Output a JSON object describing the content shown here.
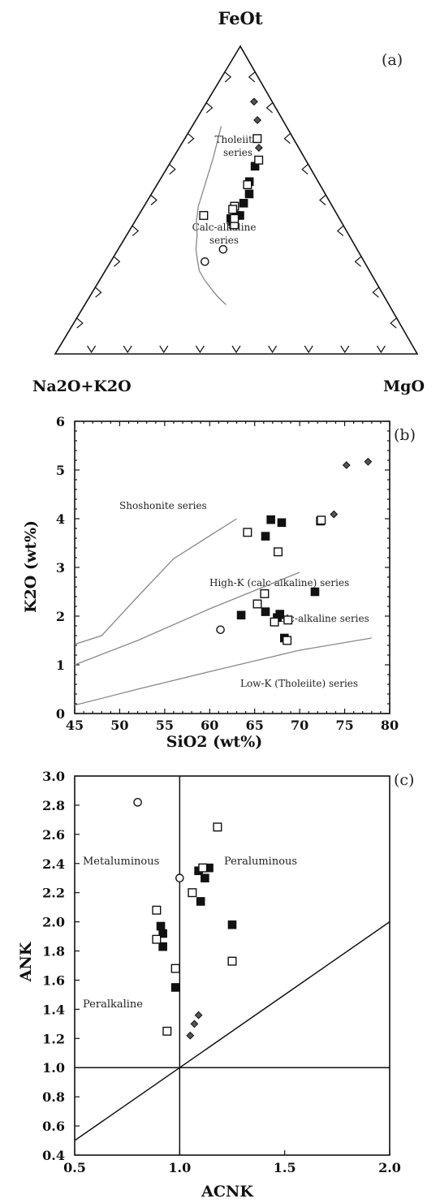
{
  "chart_data": [
    {
      "panel": "(a)",
      "type": "scatter",
      "subtype": "ternary AFM diagram",
      "apex_labels": {
        "top": "FeOt",
        "left": "Na2O+K2O",
        "right": "MgO"
      },
      "field_labels": [
        {
          "line1": "Tholeiitic",
          "line2": "series"
        },
        {
          "line1": "Calc-alkaline",
          "line2": "series"
        }
      ],
      "boundary_curve": [
        [
          0.74,
          0.18,
          0.08
        ],
        [
          0.64,
          0.25,
          0.11
        ],
        [
          0.56,
          0.31,
          0.13
        ],
        [
          0.48,
          0.37,
          0.15
        ],
        [
          0.43,
          0.4,
          0.17
        ],
        [
          0.385,
          0.42,
          0.195
        ],
        [
          0.34,
          0.445,
          0.215
        ],
        [
          0.3,
          0.46,
          0.24
        ],
        [
          0.27,
          0.47,
          0.26
        ],
        [
          0.24,
          0.47,
          0.29
        ],
        [
          0.21,
          0.465,
          0.325
        ],
        [
          0.185,
          0.46,
          0.355
        ],
        [
          0.16,
          0.45,
          0.39
        ]
      ],
      "series": [
        {
          "symbol": "filled-square",
          "points": [
            [
              0.61,
              0.15,
              0.24
            ],
            [
              0.56,
              0.19,
              0.25
            ],
            [
              0.52,
              0.21,
              0.27
            ],
            [
              0.49,
              0.24,
              0.27
            ],
            [
              0.45,
              0.28,
              0.27
            ],
            [
              0.43,
              0.3,
              0.27
            ],
            [
              0.45,
              0.27,
              0.28
            ],
            [
              0.44,
              0.3,
              0.26
            ],
            [
              0.42,
              0.3,
              0.28
            ]
          ]
        },
        {
          "symbol": "open-square",
          "points": [
            [
              0.7,
              0.1,
              0.2
            ],
            [
              0.63,
              0.13,
              0.24
            ],
            [
              0.55,
              0.2,
              0.25
            ],
            [
              0.48,
              0.27,
              0.25
            ],
            [
              0.47,
              0.28,
              0.25
            ],
            [
              0.45,
              0.37,
              0.18
            ],
            [
              0.42,
              0.3,
              0.28
            ],
            [
              0.44,
              0.29,
              0.27
            ]
          ]
        },
        {
          "symbol": "open-circle",
          "points": [
            [
              0.34,
              0.37,
              0.29
            ],
            [
              0.3,
              0.44,
              0.26
            ]
          ]
        },
        {
          "symbol": "diamond",
          "points": [
            [
              0.82,
              0.05,
              0.13
            ],
            [
              0.76,
              0.07,
              0.17
            ],
            [
              0.67,
              0.11,
              0.22
            ]
          ]
        }
      ]
    },
    {
      "panel": "(b)",
      "type": "scatter",
      "xlabel": "SiO2 (wt%)",
      "ylabel": "K2O (wt%)",
      "xlim": [
        45,
        80
      ],
      "ylim": [
        0,
        6
      ],
      "xticks": [
        45,
        50,
        55,
        60,
        65,
        70,
        75,
        80
      ],
      "yticks": [
        0,
        1,
        2,
        3,
        4,
        5,
        6
      ],
      "field_labels": [
        "Shoshonite series",
        "High-K (calc-alkaline) series",
        "Calc-alkaline series",
        "Low-K (Tholeiite) series"
      ],
      "boundaries": [
        [
          [
            45,
            1.42
          ],
          [
            48,
            1.6
          ],
          [
            52,
            2.4
          ],
          [
            56,
            3.18
          ],
          [
            63,
            4.0
          ]
        ],
        [
          [
            45,
            1.0
          ],
          [
            52,
            1.5
          ],
          [
            60,
            2.15
          ],
          [
            70,
            2.9
          ]
        ],
        [
          [
            45,
            0.17
          ],
          [
            52,
            0.5
          ],
          [
            60,
            0.86
          ],
          [
            70,
            1.3
          ],
          [
            78,
            1.55
          ]
        ]
      ],
      "series": [
        {
          "symbol": "filled-square",
          "points": [
            [
              63.5,
              2.02
            ],
            [
              66.8,
              3.98
            ],
            [
              66.2,
              3.64
            ],
            [
              66.2,
              2.09
            ],
            [
              67.5,
              1.97
            ],
            [
              68.0,
              3.92
            ],
            [
              67.8,
              2.04
            ],
            [
              68.3,
              1.55
            ],
            [
              71.7,
              2.5
            ],
            [
              72.3,
              3.95
            ]
          ]
        },
        {
          "symbol": "open-square",
          "points": [
            [
              64.2,
              3.72
            ],
            [
              65.3,
              2.25
            ],
            [
              66.1,
              2.46
            ],
            [
              67.2,
              1.88
            ],
            [
              67.6,
              3.32
            ],
            [
              68.7,
              1.92
            ],
            [
              68.6,
              1.5
            ],
            [
              72.4,
              3.97
            ]
          ]
        },
        {
          "symbol": "open-circle",
          "points": [
            [
              61.2,
              1.72
            ]
          ]
        },
        {
          "symbol": "diamond",
          "points": [
            [
              73.8,
              4.09
            ],
            [
              75.2,
              5.1
            ],
            [
              77.6,
              5.17
            ]
          ]
        }
      ]
    },
    {
      "panel": "(c)",
      "type": "scatter",
      "xlabel": "ACNK",
      "ylabel": "ANK",
      "xlim": [
        0.5,
        2.0
      ],
      "ylim": [
        0.4,
        3.0
      ],
      "xticks": [
        0.5,
        1.0,
        1.5,
        2.0
      ],
      "xtick_labels": [
        "0.5",
        "1.0",
        "1.5",
        "2.0"
      ],
      "yticks": [
        0.4,
        0.6,
        0.8,
        1.0,
        1.2,
        1.4,
        1.6,
        1.8,
        2.0,
        2.2,
        2.4,
        2.6,
        2.8,
        3.0
      ],
      "ytick_labels": [
        "0.4",
        "0.6",
        "0.8",
        "1.0",
        "1.2",
        "1.4",
        "1.6",
        "1.8",
        "2.0",
        "2.2",
        "2.4",
        "2.6",
        "2.8",
        "3.0"
      ],
      "field_labels": [
        "Metaluminous",
        "Peraluminous",
        "Peralkaline"
      ],
      "reference_lines": {
        "vertical_x": 1.0,
        "horizontal_y": 1.0,
        "diagonal": [
          [
            0.5,
            0.5
          ],
          [
            2.0,
            2.0
          ]
        ]
      },
      "series": [
        {
          "symbol": "filled-square",
          "points": [
            [
              0.91,
              1.97
            ],
            [
              0.92,
              1.92
            ],
            [
              0.92,
              1.83
            ],
            [
              0.98,
              1.55
            ],
            [
              1.09,
              2.35
            ],
            [
              1.1,
              2.14
            ],
            [
              1.12,
              2.3
            ],
            [
              1.14,
              2.37
            ],
            [
              1.25,
              1.98
            ]
          ]
        },
        {
          "symbol": "open-square",
          "points": [
            [
              0.89,
              2.08
            ],
            [
              0.89,
              1.88
            ],
            [
              0.94,
              1.25
            ],
            [
              0.98,
              1.68
            ],
            [
              1.06,
              2.2
            ],
            [
              1.11,
              2.37
            ],
            [
              1.18,
              2.65
            ],
            [
              1.25,
              1.73
            ]
          ]
        },
        {
          "symbol": "open-circle",
          "points": [
            [
              0.8,
              2.82
            ],
            [
              1.0,
              2.3
            ]
          ]
        },
        {
          "symbol": "diamond",
          "points": [
            [
              1.05,
              1.22
            ],
            [
              1.07,
              1.3
            ],
            [
              1.09,
              1.36
            ]
          ]
        }
      ]
    }
  ]
}
